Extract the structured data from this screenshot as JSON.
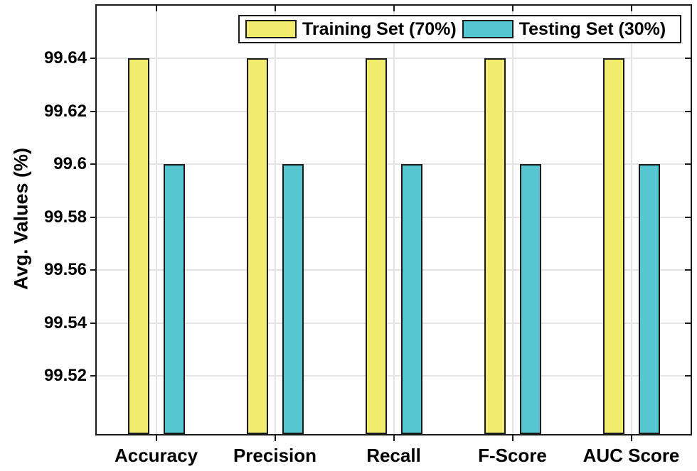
{
  "chart_data": {
    "type": "bar",
    "title": "",
    "categories": [
      "Accuracy",
      "Precision",
      "Recall",
      "F-Score",
      "AUC Score"
    ],
    "series": [
      {
        "name": "Training Set (70%)",
        "values": [
          99.64,
          99.64,
          99.64,
          99.64,
          99.64
        ],
        "color": "#f1ec6e",
        "border_color": "#1a1a1a"
      },
      {
        "name": "Testing Set (30%)",
        "values": [
          99.6,
          99.6,
          99.6,
          99.6,
          99.6
        ],
        "color": "#56c6d0",
        "border_color": "#1a1a1a"
      }
    ],
    "xlabel": "",
    "ylabel": "Avg. Values (%)",
    "ylim": [
      99.498,
      99.66
    ],
    "yticks": [
      99.52,
      99.54,
      99.56,
      99.58,
      99.6,
      99.62,
      99.64
    ],
    "ytick_labels": [
      "99.52",
      "99.54",
      "99.56",
      "99.58",
      "99.6",
      "99.62",
      "99.64"
    ],
    "grid": true,
    "legend_position": "top-center",
    "colors": {
      "grid": "#e3e3e3",
      "axis": "#1a1a1a",
      "text": "#000000",
      "background": "#ffffff"
    }
  }
}
